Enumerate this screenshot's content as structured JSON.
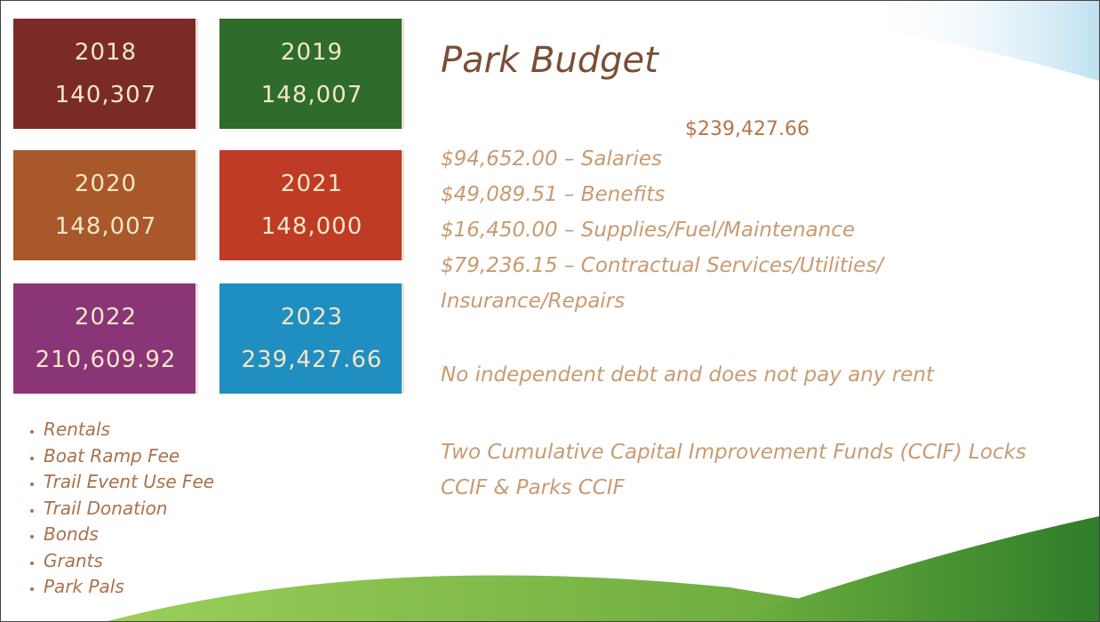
{
  "title": "Park Budget",
  "tiles": [
    {
      "year": "2018",
      "amount": "140,307"
    },
    {
      "year": "2019",
      "amount": "148,007"
    },
    {
      "year": "2020",
      "amount": "148,007"
    },
    {
      "year": "2021",
      "amount": "148,000"
    },
    {
      "year": "2022",
      "amount": "210,609.92"
    },
    {
      "year": "2023",
      "amount": "239,427.66"
    }
  ],
  "total": "$239,427.66",
  "items": [
    "$94,652.00 – Salaries",
    "$49,089.51 – Benefits",
    "$16,450.00 – Supplies/Fuel/Maintenance",
    "$79,236.15 – Contractual Services/Utilities/ Insurance/Repairs"
  ],
  "notes": [
    "No independent debt and does not pay any rent",
    "Two Cumulative Capital Improvement Funds (CCIF) Locks CCIF & Parks CCIF"
  ],
  "revenue_sources": [
    "Rentals",
    "Boat Ramp Fee",
    "Trail Event Use Fee",
    "Trail Donation",
    "Bonds",
    "Grants",
    "Park Pals"
  ]
}
